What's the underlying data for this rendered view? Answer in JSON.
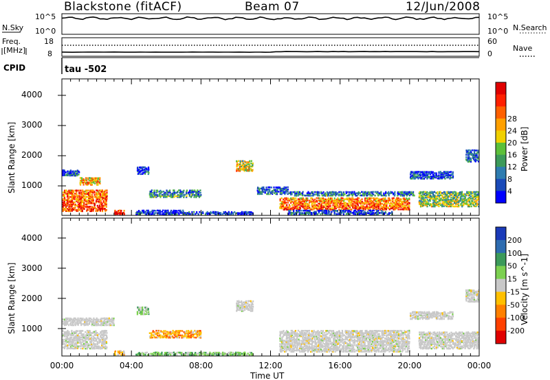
{
  "header": {
    "station": "Blackstone (fitACF)",
    "beam": "Beam 07",
    "date": "12/Jun/2008"
  },
  "summary_panels": {
    "noise": {
      "left_label": "N.Sky",
      "right_label": "N.Search",
      "left_ticks": [
        "10^5",
        "10^0"
      ],
      "right_ticks": [
        "10^5",
        "10^0"
      ]
    },
    "freq": {
      "left_label_1": "Freq.",
      "left_label_2": "[MHz]",
      "right_label": "Nave",
      "left_ticks": [
        "18",
        "8"
      ],
      "right_ticks": [
        "60",
        "0"
      ]
    },
    "cpid": {
      "label": "CPID",
      "value": "tau -502"
    }
  },
  "chart_data": [
    {
      "type": "heatmap",
      "title": "",
      "ylabel": "Slant Range [km]",
      "xlabel": "",
      "yticks": [
        "1000",
        "2000",
        "3000",
        "4000"
      ],
      "ylim": [
        180,
        4600
      ],
      "xlim_hours": [
        0,
        24
      ],
      "colorbar": {
        "label": "Power [dB]",
        "ticks": [
          "4",
          "8",
          "12",
          "16",
          "20",
          "24",
          "28"
        ],
        "range": [
          0,
          30
        ],
        "colors": [
          "#0000ff",
          "#1a4ab8",
          "#2e7cb0",
          "#3c9a5a",
          "#5cc03a",
          "#f0d000",
          "#ffa000",
          "#ff6000",
          "#ff2000",
          "#e00000"
        ]
      },
      "scatter_bands": [
        {
          "t0": 0.0,
          "t1": 2.6,
          "r0": 300,
          "r1": 1000,
          "level": 0.85
        },
        {
          "t0": 1.0,
          "t1": 2.2,
          "r0": 1150,
          "r1": 1400,
          "level": 0.7
        },
        {
          "t0": 0.0,
          "t1": 1.0,
          "r0": 1450,
          "r1": 1650,
          "level": 0.2
        },
        {
          "t0": 3.0,
          "t1": 3.6,
          "r0": 200,
          "r1": 350,
          "level": 0.95
        },
        {
          "t0": 4.2,
          "t1": 7.0,
          "r0": 200,
          "r1": 350,
          "level": 0.15
        },
        {
          "t0": 4.3,
          "t1": 5.0,
          "r0": 1500,
          "r1": 1750,
          "level": 0.2
        },
        {
          "t0": 5.0,
          "t1": 8.0,
          "r0": 750,
          "r1": 1000,
          "level": 0.35
        },
        {
          "t0": 7.0,
          "t1": 11.0,
          "r0": 200,
          "r1": 300,
          "level": 0.2
        },
        {
          "t0": 10.0,
          "t1": 11.0,
          "r0": 1600,
          "r1": 1950,
          "level": 0.6
        },
        {
          "t0": 11.2,
          "t1": 13.0,
          "r0": 850,
          "r1": 1100,
          "level": 0.25
        },
        {
          "t0": 12.5,
          "t1": 20.0,
          "r0": 350,
          "r1": 750,
          "level": 0.8
        },
        {
          "t0": 13.0,
          "t1": 20.3,
          "r0": 800,
          "r1": 950,
          "level": 0.3
        },
        {
          "t0": 13.0,
          "t1": 19.0,
          "r0": 200,
          "r1": 350,
          "level": 0.2
        },
        {
          "t0": 20.0,
          "t1": 22.5,
          "r0": 1350,
          "r1": 1600,
          "level": 0.2
        },
        {
          "t0": 20.5,
          "t1": 24.0,
          "r0": 450,
          "r1": 950,
          "level": 0.5
        },
        {
          "t0": 23.2,
          "t1": 24.0,
          "r0": 1900,
          "r1": 2300,
          "level": 0.25
        }
      ]
    },
    {
      "type": "heatmap",
      "title": "",
      "ylabel": "Slant Range [km]",
      "xlabel": "Time UT",
      "yticks": [
        "1000",
        "2000",
        "3000",
        "4000"
      ],
      "ylim": [
        180,
        4600
      ],
      "xticks": [
        "00:00",
        "04:00",
        "08:00",
        "12:00",
        "16:00",
        "20:00",
        "00:00"
      ],
      "colorbar": {
        "label": "Velocity [m s^-1]",
        "ticks": [
          "200",
          "100",
          "50",
          "15",
          "-15",
          "-50",
          "-100",
          "-200"
        ],
        "range": [
          -250,
          250
        ],
        "colors": [
          "#1a3ab8",
          "#2e6cb0",
          "#3c9a5a",
          "#7cd050",
          "#c8c8c8",
          "#ffc000",
          "#ff8000",
          "#ff4000",
          "#e00000"
        ]
      },
      "scatter_bands": [
        {
          "t0": 0.0,
          "t1": 2.6,
          "r0": 400,
          "r1": 1000,
          "level": "ground"
        },
        {
          "t0": 0.0,
          "t1": 3.0,
          "r0": 1150,
          "r1": 1400,
          "level": "ground"
        },
        {
          "t0": 3.0,
          "t1": 3.6,
          "r0": 200,
          "r1": 350,
          "level": "neg"
        },
        {
          "t0": 4.3,
          "t1": 5.0,
          "r0": 1500,
          "r1": 1750,
          "level": "pos"
        },
        {
          "t0": 5.0,
          "t1": 8.0,
          "r0": 750,
          "r1": 1000,
          "level": "neg"
        },
        {
          "t0": 4.2,
          "t1": 11.0,
          "r0": 200,
          "r1": 300,
          "level": "pos"
        },
        {
          "t0": 10.0,
          "t1": 11.0,
          "r0": 1600,
          "r1": 1950,
          "level": "ground"
        },
        {
          "t0": 12.5,
          "t1": 20.0,
          "r0": 300,
          "r1": 1000,
          "level": "ground"
        },
        {
          "t0": 20.0,
          "t1": 22.5,
          "r0": 1350,
          "r1": 1600,
          "level": "ground"
        },
        {
          "t0": 20.5,
          "t1": 24.0,
          "r0": 400,
          "r1": 950,
          "level": "ground"
        },
        {
          "t0": 23.2,
          "t1": 24.0,
          "r0": 1900,
          "r1": 2300,
          "level": "ground"
        }
      ]
    }
  ]
}
